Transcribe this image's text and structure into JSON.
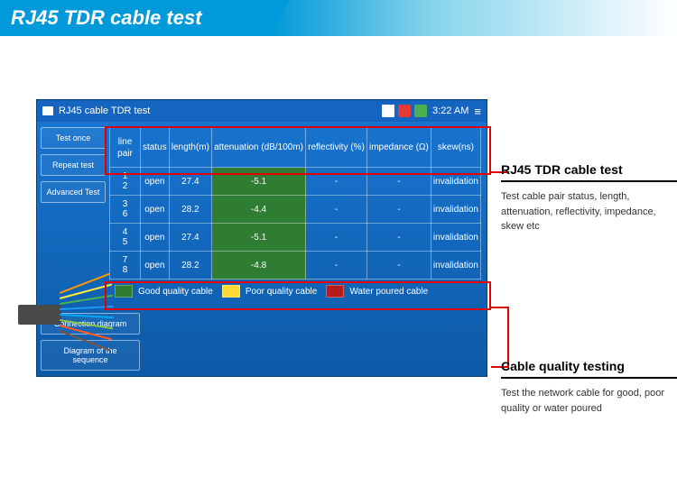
{
  "banner": {
    "title": "RJ45 TDR cable test"
  },
  "titlebar": {
    "title": "RJ45 cable TDR test",
    "time": "3:22 AM"
  },
  "sidebar": {
    "btn1": "Test once",
    "btn2": "Repeat test",
    "btn3": "Advanced Test",
    "btn4": "Connection diagram",
    "btn5": "Diagram of the sequence"
  },
  "table": {
    "headers": {
      "pair": "line pair",
      "status": "status",
      "length": "length(m)",
      "atten": "attenuation (dB/100m)",
      "refl": "reflectivity (%)",
      "imp": "impedance (Ω)",
      "skew": "skew(ns)"
    },
    "row1": {
      "pair": "1\n2",
      "status": "open",
      "length": "27.4",
      "atten": "-5.1",
      "refl": "-",
      "imp": "-",
      "skew": "invalidation"
    },
    "row2": {
      "pair": "3\n6",
      "status": "open",
      "length": "28.2",
      "atten": "-4.4",
      "refl": "-",
      "imp": "-",
      "skew": "invalidation"
    },
    "row3": {
      "pair": "4\n5",
      "status": "open",
      "length": "27.4",
      "atten": "-5.1",
      "refl": "-",
      "imp": "-",
      "skew": "invalidation"
    },
    "row4": {
      "pair": "7\n8",
      "status": "open",
      "length": "28.2",
      "atten": "-4.8",
      "refl": "-",
      "imp": "-",
      "skew": "invalidation"
    }
  },
  "legend": {
    "good": {
      "label": "Good quality cable",
      "color": "#2e7d32"
    },
    "poor": {
      "label": "Poor quality cable",
      "color": "#fdd835"
    },
    "water": {
      "label": "Water poured cable",
      "color": "#b71c1c"
    }
  },
  "annot1": {
    "title": "RJ45 TDR cable test",
    "desc": "Test cable pair status, length, attenuation, reflectivity, impedance, skew etc"
  },
  "annot2": {
    "title": "Cable quality testing",
    "desc": "Test the network cable for good, poor quality or water poured"
  },
  "wire_colors": [
    "#ff9800",
    "#ffeb3b",
    "#4caf50",
    "#2196f3",
    "#03a9f4",
    "#8bc34a",
    "#ff5722",
    "#795548"
  ],
  "status_colors": {
    "battery": "#fff",
    "net": "#e53935",
    "disk": "#4caf50"
  }
}
